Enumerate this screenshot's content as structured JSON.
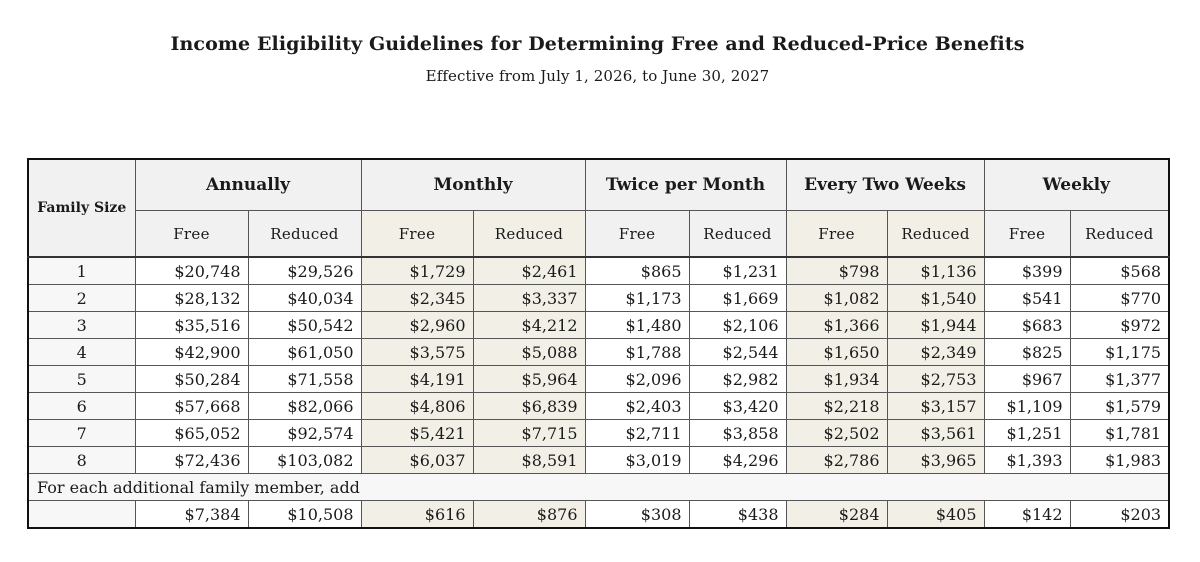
{
  "header": {
    "title": "Income Eligibility Guidelines for Determining Free and Reduced-Price Benefits",
    "subtitle": "Effective from July 1, 2026, to June 30, 2027"
  },
  "table": {
    "family_size_header": "Family Size",
    "groups": [
      "Annually",
      "Monthly",
      "Twice per Month",
      "Every Two Weeks",
      "Weekly"
    ],
    "subheaders": [
      "Free",
      "Reduced",
      "Free",
      "Reduced",
      "Free",
      "Reduced",
      "Free",
      "Reduced",
      "Free",
      "Reduced"
    ],
    "rows": [
      {
        "size": "1",
        "values": [
          "$20,748",
          "$29,526",
          "$1,729",
          "$2,461",
          "$865",
          "$1,231",
          "$798",
          "$1,136",
          "$399",
          "$568"
        ]
      },
      {
        "size": "2",
        "values": [
          "$28,132",
          "$40,034",
          "$2,345",
          "$3,337",
          "$1,173",
          "$1,669",
          "$1,082",
          "$1,540",
          "$541",
          "$770"
        ]
      },
      {
        "size": "3",
        "values": [
          "$35,516",
          "$50,542",
          "$2,960",
          "$4,212",
          "$1,480",
          "$2,106",
          "$1,366",
          "$1,944",
          "$683",
          "$972"
        ]
      },
      {
        "size": "4",
        "values": [
          "$42,900",
          "$61,050",
          "$3,575",
          "$5,088",
          "$1,788",
          "$2,544",
          "$1,650",
          "$2,349",
          "$825",
          "$1,175"
        ]
      },
      {
        "size": "5",
        "values": [
          "$50,284",
          "$71,558",
          "$4,191",
          "$5,964",
          "$2,096",
          "$2,982",
          "$1,934",
          "$2,753",
          "$967",
          "$1,377"
        ]
      },
      {
        "size": "6",
        "values": [
          "$57,668",
          "$82,066",
          "$4,806",
          "$6,839",
          "$2,403",
          "$3,420",
          "$2,218",
          "$3,157",
          "$1,109",
          "$1,579"
        ]
      },
      {
        "size": "7",
        "values": [
          "$65,052",
          "$92,574",
          "$5,421",
          "$7,715",
          "$2,711",
          "$3,858",
          "$2,502",
          "$3,561",
          "$1,251",
          "$1,781"
        ]
      },
      {
        "size": "8",
        "values": [
          "$72,436",
          "$103,082",
          "$6,037",
          "$8,591",
          "$3,019",
          "$4,296",
          "$2,786",
          "$3,965",
          "$1,393",
          "$1,983"
        ]
      }
    ],
    "additional_label": "For each additional family member, add",
    "additional_values": [
      "$7,384",
      "$10,508",
      "$616",
      "$876",
      "$308",
      "$438",
      "$284",
      "$405",
      "$142",
      "$203"
    ]
  }
}
